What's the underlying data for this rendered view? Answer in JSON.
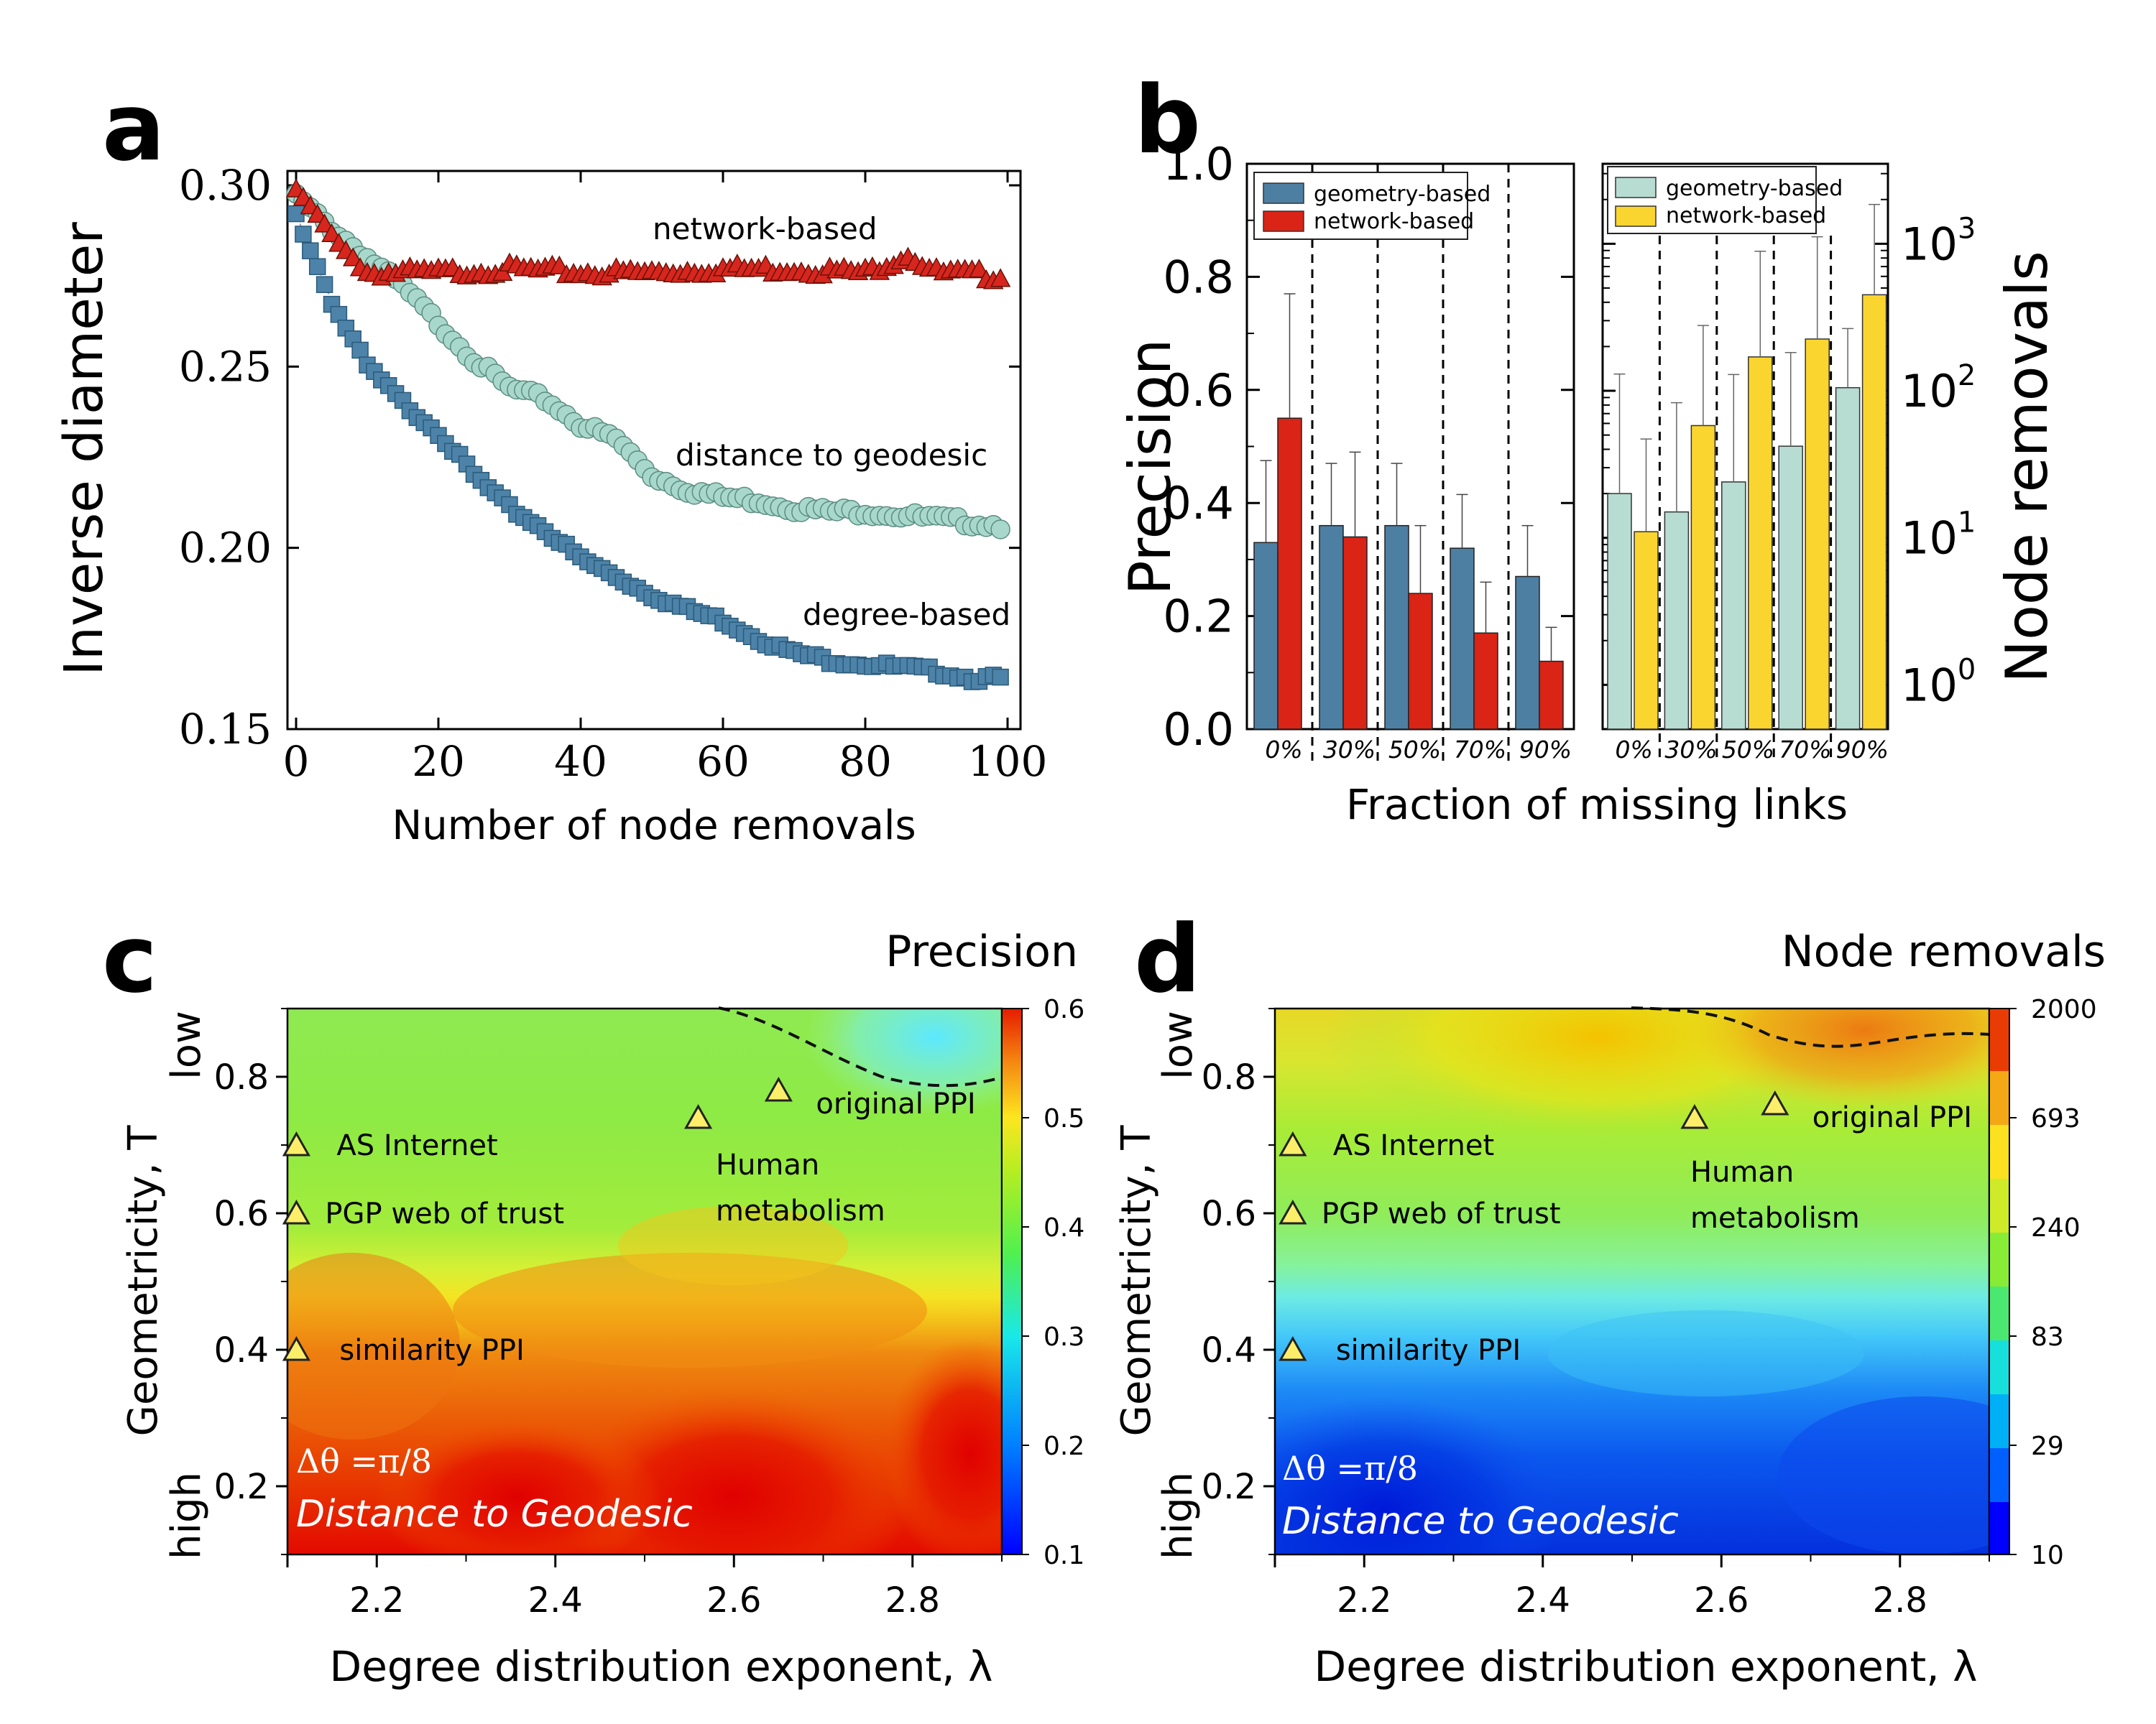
{
  "chart_data": [
    {
      "panel": "a",
      "type": "scatter",
      "xlabel": "Number of node removals",
      "ylabel": "Inverse diameter",
      "xlim": [
        0,
        100
      ],
      "ylim": [
        0.15,
        0.3
      ],
      "xticks": [
        "0",
        "20",
        "40",
        "60",
        "80",
        "100"
      ],
      "yticks": [
        "0.15",
        "0.20",
        "0.25",
        "0.30"
      ],
      "series": [
        {
          "name": "network-based",
          "color": "#d7261e",
          "marker": "triangle",
          "values": [
            [
              0,
              0.299
            ],
            [
              3,
              0.292
            ],
            [
              6,
              0.284
            ],
            [
              10,
              0.276
            ],
            [
              20,
              0.276
            ],
            [
              30,
              0.277
            ],
            [
              40,
              0.276
            ],
            [
              50,
              0.276
            ],
            [
              60,
              0.277
            ],
            [
              70,
              0.277
            ],
            [
              80,
              0.276
            ],
            [
              86,
              0.281
            ],
            [
              90,
              0.276
            ],
            [
              100,
              0.275
            ]
          ]
        },
        {
          "name": "distance to geodesic",
          "color": "#a8d8cc",
          "marker": "circle",
          "values": [
            [
              0,
              0.297
            ],
            [
              5,
              0.288
            ],
            [
              10,
              0.28
            ],
            [
              15,
              0.272
            ],
            [
              20,
              0.262
            ],
            [
              25,
              0.252
            ],
            [
              30,
              0.244
            ],
            [
              35,
              0.241
            ],
            [
              40,
              0.234
            ],
            [
              45,
              0.23
            ],
            [
              50,
              0.22
            ],
            [
              55,
              0.216
            ],
            [
              60,
              0.214
            ],
            [
              65,
              0.213
            ],
            [
              70,
              0.211
            ],
            [
              75,
              0.21
            ],
            [
              80,
              0.21
            ],
            [
              85,
              0.209
            ],
            [
              90,
              0.208
            ],
            [
              95,
              0.207
            ],
            [
              100,
              0.206
            ]
          ]
        },
        {
          "name": "degree-based",
          "color": "#4d83a8",
          "marker": "square",
          "values": [
            [
              0,
              0.292
            ],
            [
              5,
              0.268
            ],
            [
              10,
              0.25
            ],
            [
              15,
              0.24
            ],
            [
              20,
              0.232
            ],
            [
              25,
              0.22
            ],
            [
              30,
              0.211
            ],
            [
              35,
              0.205
            ],
            [
              40,
              0.197
            ],
            [
              45,
              0.192
            ],
            [
              50,
              0.187
            ],
            [
              55,
              0.183
            ],
            [
              60,
              0.18
            ],
            [
              65,
              0.175
            ],
            [
              70,
              0.171
            ],
            [
              75,
              0.169
            ],
            [
              80,
              0.168
            ],
            [
              85,
              0.167
            ],
            [
              90,
              0.166
            ],
            [
              95,
              0.164
            ],
            [
              100,
              0.164
            ]
          ]
        }
      ]
    },
    {
      "panel": "b",
      "type": "bar",
      "xlabel": "Fraction of missing links",
      "categories": [
        "0%",
        "30%",
        "50%",
        "70%",
        "90%"
      ],
      "left": {
        "ylabel": "Precision",
        "ylim": [
          0,
          1
        ],
        "yticks": [
          "0.0",
          "0.2",
          "0.4",
          "0.6",
          "0.8",
          "1.0"
        ],
        "series": [
          {
            "name": "geometry-based",
            "color": "#4d7fa3",
            "values": [
              0.33,
              0.36,
              0.36,
              0.32,
              0.27
            ],
            "errors": [
              0.145,
              0.11,
              0.11,
              0.095,
              0.09
            ]
          },
          {
            "name": "network-based",
            "color": "#d92416",
            "values": [
              0.55,
              0.34,
              0.24,
              0.17,
              0.12
            ],
            "errors": [
              0.22,
              0.15,
              0.12,
              0.09,
              0.06
            ]
          }
        ]
      },
      "right": {
        "ylabel": "Node removals",
        "scale": "log",
        "ylim": [
          0.5,
          3500
        ],
        "yticks": [
          "10^0",
          "10^1",
          "10^2",
          "10^3"
        ],
        "series": [
          {
            "name": "geometry-based",
            "color": "#b7ddd3",
            "values": [
              20,
              15,
              24,
              42,
              105
            ],
            "errors": [
              110,
              68,
              105,
              140,
              160
            ]
          },
          {
            "name": "network-based",
            "color": "#fbd52f",
            "values": [
              11,
              58,
              170,
              225,
              450
            ],
            "errors": [
              36,
              220,
              720,
              890,
              1400
            ]
          }
        ]
      }
    },
    {
      "panel": "c",
      "type": "heatmap",
      "title": "Precision",
      "xlabel": "Degree distribution exponent, λ",
      "ylabel": "Geometricity, T",
      "ylabel_low": "low",
      "ylabel_high": "high",
      "xlim": [
        2.1,
        2.9
      ],
      "ylim": [
        0.1,
        0.9
      ],
      "xticks": [
        "2.2",
        "2.4",
        "2.6",
        "2.8"
      ],
      "yticks": [
        "0.2",
        "0.4",
        "0.6",
        "0.8"
      ],
      "colorbar": {
        "min": 0.1,
        "max": 0.6,
        "ticks": [
          "0.1",
          "0.2",
          "0.3",
          "0.4",
          "0.5",
          "0.6"
        ]
      },
      "annotation": "Δθ =π/8",
      "method": "Distance to Geodesic",
      "networks": [
        {
          "name": "AS Internet",
          "x": 2.11,
          "y": 0.7
        },
        {
          "name": "PGP web of trust",
          "x": 2.11,
          "y": 0.6
        },
        {
          "name": "similarity PPI",
          "x": 2.11,
          "y": 0.4
        },
        {
          "name": "Human metabolism",
          "x": 2.56,
          "y": 0.74
        },
        {
          "name": "original PPI",
          "x": 2.65,
          "y": 0.78
        }
      ]
    },
    {
      "panel": "d",
      "type": "heatmap",
      "title": "Node removals",
      "xlabel": "Degree distribution exponent, λ",
      "ylabel": "Geometricity, T",
      "ylabel_low": "low",
      "ylabel_high": "high",
      "xlim": [
        2.1,
        2.9
      ],
      "ylim": [
        0.1,
        0.9
      ],
      "xticks": [
        "2.2",
        "2.4",
        "2.6",
        "2.8"
      ],
      "yticks": [
        "0.2",
        "0.4",
        "0.6",
        "0.8"
      ],
      "colorbar": {
        "scale": "log",
        "min": 10,
        "max": 2000,
        "ticks": [
          "10",
          "29",
          "83",
          "240",
          "693",
          "2000"
        ]
      },
      "annotation": "Δθ =π/8",
      "method": "Distance to Geodesic",
      "networks": [
        {
          "name": "AS Internet",
          "x": 2.12,
          "y": 0.7
        },
        {
          "name": "PGP web of trust",
          "x": 2.12,
          "y": 0.6
        },
        {
          "name": "similarity PPI",
          "x": 2.12,
          "y": 0.4
        },
        {
          "name": "Human metabolism",
          "x": 2.57,
          "y": 0.74
        },
        {
          "name": "original PPI",
          "x": 2.66,
          "y": 0.76
        }
      ]
    }
  ],
  "panel_labels": {
    "a": "a",
    "b": "b",
    "c": "c",
    "d": "d"
  },
  "labels": {
    "a_network": "network-based",
    "a_geodesic": "distance to geodesic",
    "a_degree": "degree-based",
    "c_human_1": "Human",
    "c_human_2": "metabolism",
    "d_human_1": "Human",
    "d_human_2": "metabolism"
  }
}
